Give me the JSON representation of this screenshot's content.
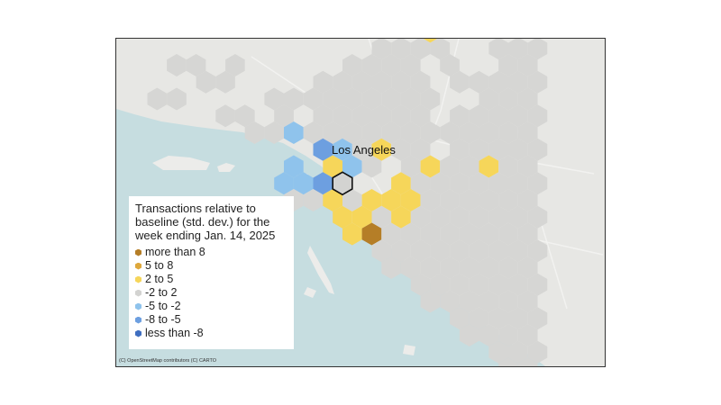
{
  "map": {
    "city_label": "Los Angeles",
    "attribution": "(C) OpenStreetMap contributors (C) CARTO",
    "colors": {
      "ocean": "#c6dde0",
      "land": "#e7e7e4",
      "island": "#ececea",
      "hex_neutral": "#d6d6d4",
      "highlight_outline": "#111111"
    }
  },
  "legend": {
    "title": "Transactions relative to baseline (std. dev.) for the week ending Jan. 14, 2025",
    "items": [
      {
        "label": "more than 8",
        "color": "#b57e27"
      },
      {
        "label": "5 to 8",
        "color": "#dea83c"
      },
      {
        "label": "2 to 5",
        "color": "#f6d65a"
      },
      {
        "label": "-2 to 2",
        "color": "#d3d3d1"
      },
      {
        "label": "-5 to -2",
        "color": "#8fc3ec"
      },
      {
        "label": "-8 to -5",
        "color": "#6d9fe0"
      },
      {
        "label": "less than -8",
        "color": "#3f6ec0"
      }
    ]
  }
}
